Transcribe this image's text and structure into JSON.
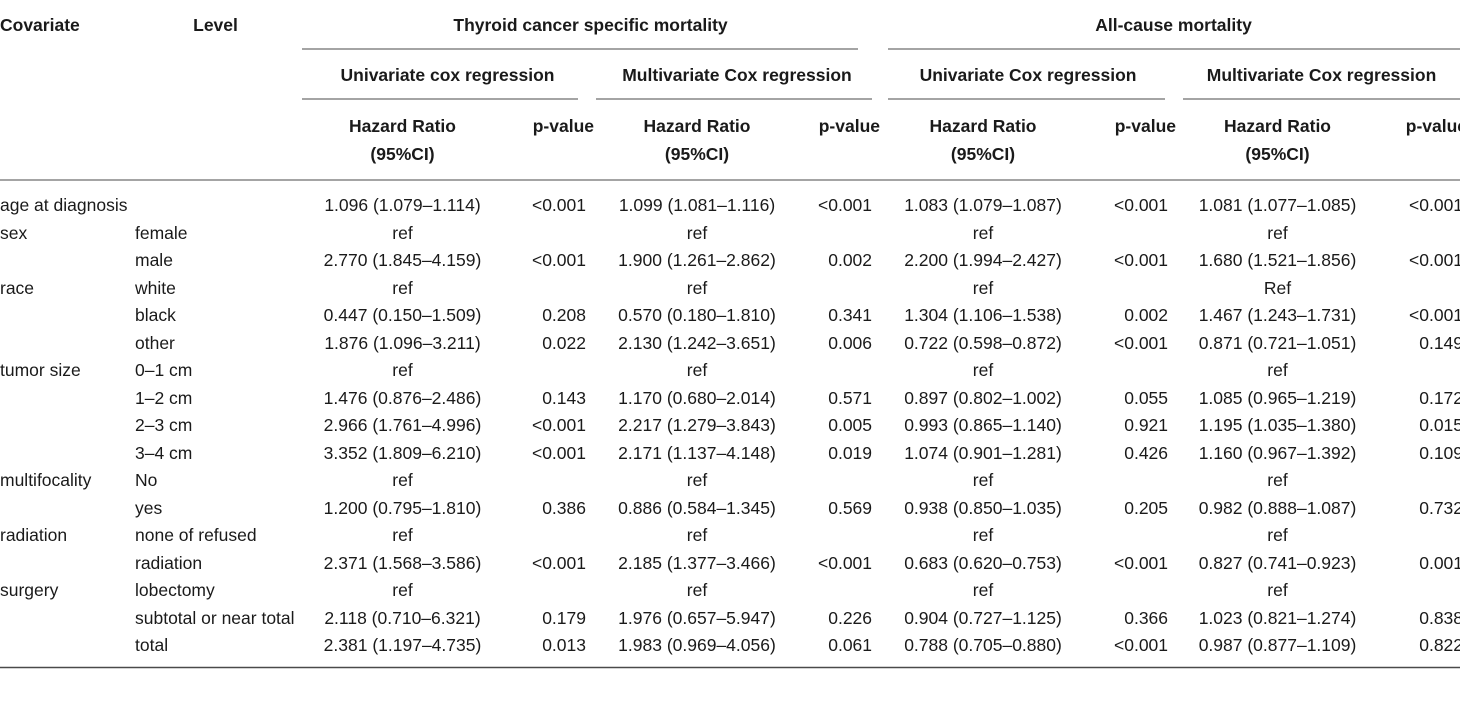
{
  "header": {
    "covariate": "Covariate",
    "level": "Level",
    "groups": [
      "Thyroid cancer specific mortality",
      "All-cause mortality"
    ],
    "subgroups": [
      "Univariate cox regression",
      "Multivariate Cox regression",
      "Univariate Cox regression",
      "Multivariate Cox regression"
    ],
    "hr_label_line1": "Hazard Ratio",
    "hr_label_line2": "(95%CI)",
    "p_label": "p-value"
  },
  "rows": [
    {
      "covariate": "age at diagnosis",
      "level": "",
      "cells": [
        "1.096 (1.079–1.114)",
        "<0.001",
        "1.099 (1.081–1.116)",
        "<0.001",
        "1.083 (1.079–1.087)",
        "<0.001",
        "1.081 (1.077–1.085)",
        "<0.001"
      ]
    },
    {
      "covariate": "sex",
      "level": "female",
      "cells": [
        "ref",
        "",
        "ref",
        "",
        "ref",
        "",
        "ref",
        ""
      ]
    },
    {
      "covariate": "",
      "level": "male",
      "cells": [
        "2.770 (1.845–4.159)",
        "<0.001",
        "1.900 (1.261–2.862)",
        "0.002",
        "2.200 (1.994–2.427)",
        "<0.001",
        "1.680 (1.521–1.856)",
        "<0.001"
      ]
    },
    {
      "covariate": "race",
      "level": "white",
      "cells": [
        "ref",
        "",
        "ref",
        "",
        "ref",
        "",
        "Ref",
        ""
      ]
    },
    {
      "covariate": "",
      "level": "black",
      "cells": [
        "0.447 (0.150–1.509)",
        "0.208",
        "0.570 (0.180–1.810)",
        "0.341",
        "1.304 (1.106–1.538)",
        "0.002",
        "1.467 (1.243–1.731)",
        "<0.001"
      ]
    },
    {
      "covariate": "",
      "level": "other",
      "cells": [
        "1.876 (1.096–3.211)",
        "0.022",
        "2.130 (1.242–3.651)",
        "0.006",
        "0.722 (0.598–0.872)",
        "<0.001",
        "0.871 (0.721–1.051)",
        "0.149"
      ]
    },
    {
      "covariate": "tumor size",
      "level": "0–1 cm",
      "cells": [
        "ref",
        "",
        "ref",
        "",
        "ref",
        "",
        "ref",
        ""
      ]
    },
    {
      "covariate": "",
      "level": "1–2 cm",
      "cells": [
        "1.476 (0.876–2.486)",
        "0.143",
        "1.170 (0.680–2.014)",
        "0.571",
        "0.897 (0.802–1.002)",
        "0.055",
        "1.085 (0.965–1.219)",
        "0.172"
      ]
    },
    {
      "covariate": "",
      "level": "2–3 cm",
      "cells": [
        "2.966 (1.761–4.996)",
        "<0.001",
        "2.217 (1.279–3.843)",
        "0.005",
        "0.993 (0.865–1.140)",
        "0.921",
        "1.195 (1.035–1.380)",
        "0.015"
      ]
    },
    {
      "covariate": "",
      "level": "3–4 cm",
      "cells": [
        "3.352 (1.809–6.210)",
        "<0.001",
        "2.171 (1.137–4.148)",
        "0.019",
        "1.074 (0.901–1.281)",
        "0.426",
        "1.160 (0.967–1.392)",
        "0.109"
      ]
    },
    {
      "covariate": "multifocality",
      "level": "No",
      "cells": [
        "ref",
        "",
        "ref",
        "",
        "ref",
        "",
        "ref",
        ""
      ]
    },
    {
      "covariate": "",
      "level": "yes",
      "cells": [
        "1.200 (0.795–1.810)",
        "0.386",
        "0.886 (0.584–1.345)",
        "0.569",
        "0.938 (0.850–1.035)",
        "0.205",
        "0.982 (0.888–1.087)",
        "0.732"
      ]
    },
    {
      "covariate": "radiation",
      "level": "none of refused",
      "cells": [
        "ref",
        "",
        "ref",
        "",
        "ref",
        "",
        "ref",
        ""
      ]
    },
    {
      "covariate": "",
      "level": "radiation",
      "cells": [
        "2.371 (1.568–3.586)",
        "<0.001",
        "2.185 (1.377–3.466)",
        "<0.001",
        "0.683 (0.620–0.753)",
        "<0.001",
        "0.827 (0.741–0.923)",
        "0.001"
      ]
    },
    {
      "covariate": "surgery",
      "level": "lobectomy",
      "cells": [
        "ref",
        "",
        "ref",
        "",
        "ref",
        "",
        "ref",
        ""
      ]
    },
    {
      "covariate": "",
      "level": "subtotal or near total",
      "cells": [
        "2.118 (0.710–6.321)",
        "0.179",
        "1.976 (0.657–5.947)",
        "0.226",
        "0.904 (0.727–1.125)",
        "0.366",
        "1.023 (0.821–1.274)",
        "0.838"
      ]
    },
    {
      "covariate": "",
      "level": "total",
      "cells": [
        "2.381 (1.197–4.735)",
        "0.013",
        "1.983 (0.969–4.056)",
        "0.061",
        "0.788 (0.705–0.880)",
        "<0.001",
        "0.987 (0.877–1.109)",
        "0.822"
      ]
    }
  ]
}
